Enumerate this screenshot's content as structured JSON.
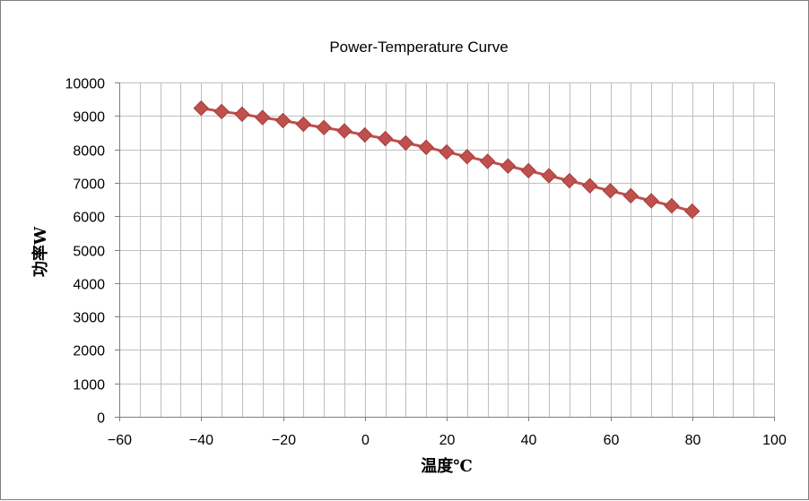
{
  "chart_data": {
    "type": "line",
    "title": "Power-Temperature Curve",
    "xlabel": "温度℃",
    "ylabel": "功率W",
    "xlim": [
      -60,
      100
    ],
    "ylim": [
      0,
      10000
    ],
    "x_ticks": [
      -60,
      -40,
      -20,
      0,
      20,
      40,
      60,
      80,
      100
    ],
    "y_ticks": [
      0,
      1000,
      2000,
      3000,
      4000,
      5000,
      6000,
      7000,
      8000,
      9000,
      10000
    ],
    "x_minor_step": 5,
    "grid": true,
    "legend": "none",
    "series_color": "#c0504d",
    "marker": "diamond",
    "series": [
      {
        "x": [
          -40,
          -35,
          -30,
          -25,
          -20,
          -15,
          -10,
          -5,
          0,
          5,
          10,
          15,
          20,
          25,
          30,
          35,
          40,
          45,
          50,
          55,
          60,
          65,
          70,
          75,
          80
        ],
        "y": [
          9230,
          9130,
          9050,
          8950,
          8860,
          8750,
          8650,
          8550,
          8430,
          8320,
          8190,
          8060,
          7920,
          7780,
          7640,
          7500,
          7360,
          7210,
          7060,
          6910,
          6760,
          6610,
          6460,
          6310,
          6150
        ]
      }
    ]
  }
}
